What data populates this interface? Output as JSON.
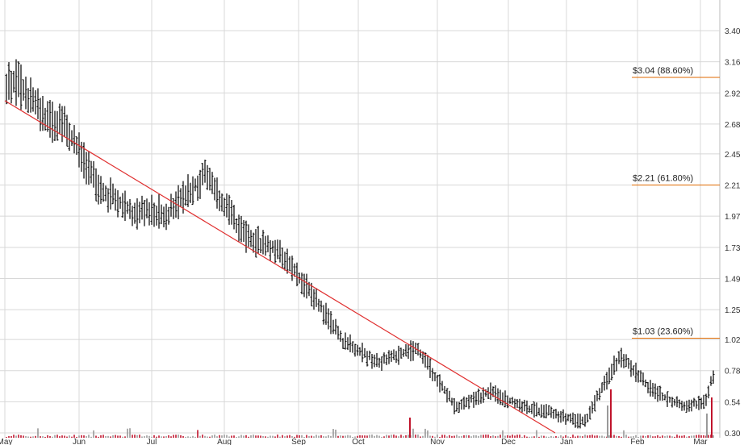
{
  "chart_data": {
    "type": "line",
    "subtype": "ohlc-bars-with-volume",
    "x_labels": [
      "May",
      "Jun",
      "Jul",
      "Aug",
      "Sep",
      "Oct",
      "Nov",
      "Dec",
      "Jan",
      "Feb",
      "Mar"
    ],
    "y_ticks": [
      "3.40",
      "3.16",
      "2.92",
      "2.68",
      "2.45",
      "2.21",
      "1.97",
      "1.73",
      "1.49",
      "1.25",
      "1.02",
      "0.78",
      "0.54",
      "0.30"
    ],
    "ylim": [
      0.3,
      3.4
    ],
    "grid": true,
    "fib_levels": [
      {
        "label": "$3.04 (88.60%)",
        "value": 3.04
      },
      {
        "label": "$2.21 (61.80%)",
        "value": 2.21
      },
      {
        "label": "$1.03 (23.60%)",
        "value": 1.03
      }
    ],
    "trendline": {
      "start": [
        "May",
        2.86
      ],
      "end": [
        "Jan",
        0.3
      ],
      "color": "#e03030"
    },
    "price_keypoints": [
      [
        "May",
        3.0
      ],
      [
        "May",
        2.75
      ],
      [
        "May",
        2.65
      ],
      [
        "Jun",
        2.2
      ],
      [
        "Jun",
        2.0
      ],
      [
        "Jul",
        2.0
      ],
      [
        "Jul",
        2.3
      ],
      [
        "Aug",
        1.82
      ],
      [
        "Aug",
        1.7
      ],
      [
        "Sep",
        1.35
      ],
      [
        "Sep",
        1.0
      ],
      [
        "Oct",
        0.85
      ],
      [
        "Oct",
        0.95
      ],
      [
        "Nov",
        0.5
      ],
      [
        "Nov",
        0.62
      ],
      [
        "Dec",
        0.5
      ],
      [
        "Dec",
        0.45
      ],
      [
        "Jan",
        0.38
      ],
      [
        "Jan",
        0.9
      ],
      [
        "Feb",
        0.62
      ],
      [
        "Feb",
        0.5
      ],
      [
        "Mar",
        0.55
      ],
      [
        "Mar",
        0.75
      ]
    ],
    "colors": {
      "bars": "#000000",
      "grid": "#d8d8d8",
      "fib": "#e06a00",
      "volume_up": "#999999",
      "volume_down": "#c0142c"
    }
  }
}
